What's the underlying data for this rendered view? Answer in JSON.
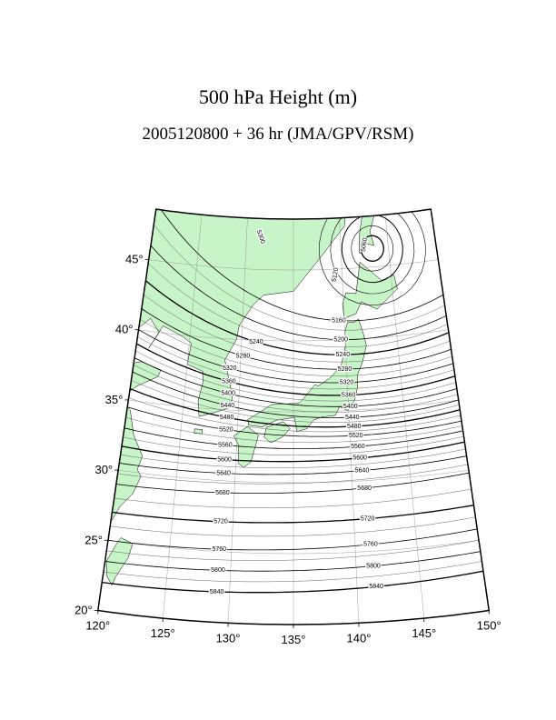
{
  "title": "500 hPa Height (m)",
  "subtitle": "2005120800 + 36 hr (JMA/GPV/RSM)",
  "latitude_labels": [
    "20°",
    "25°",
    "30°",
    "35°",
    "40°",
    "45°"
  ],
  "longitude_labels": [
    "120°",
    "125°",
    "130°",
    "135°",
    "140°",
    "145°",
    "150°"
  ],
  "contour_labels_east": [
    "5840",
    "5800",
    "5760",
    "5720",
    "5680",
    "5640",
    "5600",
    "5560",
    "5520",
    "5480",
    "5440",
    "5400",
    "5360",
    "5320",
    "5280",
    "5240",
    "5200",
    "5160"
  ],
  "contour_labels_west": [
    "5840",
    "5800",
    "5760",
    "5720",
    "5680",
    "5640",
    "5600",
    "5560",
    "5520",
    "5480",
    "5440",
    "5400",
    "5360",
    "5320",
    "5280",
    "5240"
  ],
  "contour_labels_other": [
    "5120",
    "5060",
    "5300"
  ]
}
